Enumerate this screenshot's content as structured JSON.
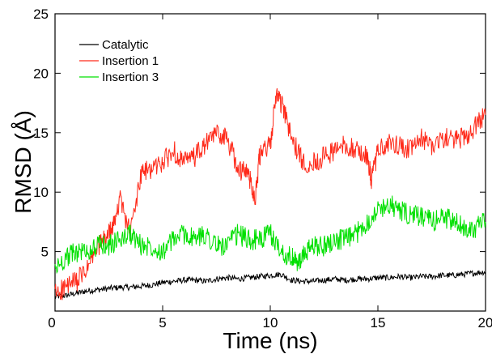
{
  "chart_data": {
    "type": "line",
    "title": "",
    "xlabel": "Time (ns)",
    "ylabel": "RMSD (Å)",
    "xlim": [
      0,
      20
    ],
    "ylim": [
      0,
      25
    ],
    "x_ticks": [
      5,
      10,
      15,
      20
    ],
    "x_tick_labels": [
      "5",
      "10",
      "15",
      "20"
    ],
    "y_ticks": [
      0,
      5,
      10,
      15,
      20,
      25
    ],
    "y_tick_labels": [
      "0",
      "5",
      "10",
      "15",
      "20",
      "25"
    ],
    "origin_label": "0",
    "grid": false,
    "legend": "top-left",
    "series": [
      {
        "name": "Catalytic",
        "color": "#000000",
        "x": [
          0,
          0.5,
          1,
          1.5,
          2,
          2.5,
          3,
          3.5,
          4,
          4.5,
          5,
          5.5,
          6,
          6.5,
          7,
          7.5,
          8,
          8.5,
          9,
          9.5,
          10,
          10.5,
          11,
          11.5,
          12,
          12.5,
          13,
          13.5,
          14,
          14.5,
          15,
          15.5,
          16,
          16.5,
          17,
          17.5,
          18,
          18.5,
          19,
          19.5,
          20
        ],
        "y": [
          1.2,
          1.3,
          1.5,
          1.7,
          1.8,
          1.9,
          2.0,
          2.0,
          2.1,
          2.2,
          2.4,
          2.5,
          2.6,
          2.6,
          2.5,
          2.7,
          2.8,
          2.7,
          2.8,
          2.9,
          3.0,
          3.1,
          2.6,
          2.5,
          2.5,
          2.6,
          2.7,
          2.6,
          2.7,
          2.7,
          2.8,
          2.8,
          2.9,
          2.8,
          2.9,
          2.9,
          3.0,
          3.0,
          3.1,
          3.2,
          3.3
        ]
      },
      {
        "name": "Insertion 1",
        "color": "#ff2a1a",
        "x": [
          0,
          0.5,
          1,
          1.5,
          2,
          2.3,
          2.7,
          3,
          3.5,
          4,
          4.5,
          5,
          5.5,
          6,
          6.5,
          7,
          7.5,
          8,
          8.5,
          9,
          9.3,
          9.5,
          10,
          10.3,
          10.6,
          11,
          11.5,
          12,
          12.5,
          13,
          13.5,
          14,
          14.5,
          14.7,
          15,
          15.5,
          16,
          16.5,
          17,
          17.5,
          18,
          18.5,
          19,
          19.5,
          20
        ],
        "y": [
          1.5,
          2.0,
          2.5,
          3.5,
          5.5,
          6.0,
          7.0,
          9.5,
          6.5,
          11.5,
          12.0,
          12.5,
          13.5,
          12.5,
          13.0,
          14.0,
          15.0,
          14.5,
          12.0,
          11.5,
          9.5,
          13.0,
          14.0,
          18.5,
          17.0,
          14.5,
          12.5,
          12.5,
          13.0,
          13.5,
          14.0,
          13.5,
          13.0,
          11.0,
          13.5,
          14.0,
          14.0,
          13.5,
          14.5,
          14.0,
          14.5,
          14.5,
          14.5,
          15.5,
          16.5
        ]
      },
      {
        "name": "Insertion 3",
        "color": "#00e000",
        "x": [
          0,
          0.5,
          1,
          1.5,
          2,
          2.5,
          3,
          3.5,
          4,
          4.5,
          5,
          5.5,
          6,
          6.5,
          7,
          7.5,
          8,
          8.5,
          9,
          9.5,
          10,
          10.5,
          11,
          11.3,
          11.7,
          12,
          12.5,
          13,
          13.5,
          14,
          14.5,
          15,
          15.5,
          16,
          16.5,
          17,
          17.5,
          18,
          18.5,
          19,
          19.5,
          20
        ],
        "y": [
          3.5,
          4.5,
          5.0,
          5.0,
          5.5,
          5.5,
          6.0,
          6.5,
          5.5,
          5.5,
          5.0,
          6.0,
          6.5,
          6.0,
          6.5,
          5.5,
          5.5,
          6.5,
          6.0,
          6.0,
          6.5,
          5.0,
          4.5,
          4.0,
          5.0,
          5.5,
          5.5,
          6.0,
          6.0,
          6.5,
          7.5,
          8.5,
          9.0,
          8.5,
          8.0,
          8.0,
          7.5,
          8.0,
          7.5,
          7.0,
          7.0,
          7.5
        ]
      }
    ]
  }
}
